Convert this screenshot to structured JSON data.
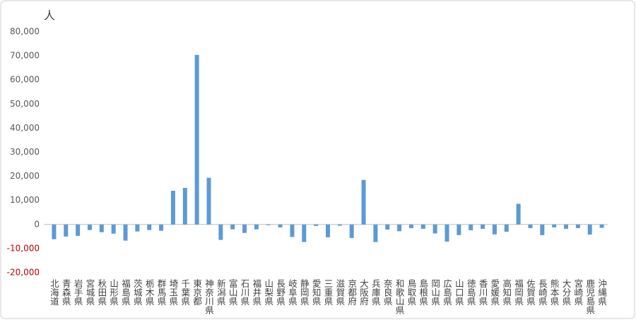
{
  "chart_data": {
    "type": "bar",
    "unit_label": "人",
    "categories": [
      "北海道",
      "青森県",
      "岩手県",
      "宮城県",
      "秋田県",
      "山形県",
      "福島県",
      "茨城県",
      "栃木県",
      "群馬県",
      "埼玉県",
      "千葉県",
      "東京都",
      "神奈川県",
      "新潟県",
      "富山県",
      "石川県",
      "福井県",
      "山梨県",
      "長野県",
      "岐阜県",
      "静岡県",
      "愛知県",
      "三重県",
      "滋賀県",
      "京都府",
      "大阪府",
      "兵庫県",
      "奈良県",
      "和歌山県",
      "鳥取県",
      "島根県",
      "岡山県",
      "広島県",
      "山口県",
      "徳島県",
      "香川県",
      "愛媛県",
      "高知県",
      "福岡県",
      "佐賀県",
      "長崎県",
      "熊本県",
      "大分県",
      "宮崎県",
      "鹿児島県",
      "沖縄県"
    ],
    "values": [
      -6100,
      -5000,
      -4700,
      -2300,
      -3200,
      -3800,
      -6700,
      -2900,
      -2300,
      -2600,
      14000,
      15200,
      70400,
      19400,
      -6400,
      -2000,
      -3500,
      -2000,
      -300,
      -1200,
      -5200,
      -7300,
      -600,
      -5300,
      -500,
      -5600,
      18500,
      -7300,
      -2100,
      -2800,
      -1500,
      -1800,
      -3700,
      -7100,
      -4400,
      -2400,
      -1800,
      -4100,
      -3000,
      8600,
      -1500,
      -4400,
      -1200,
      -1800,
      -1500,
      -4200,
      -1400
    ],
    "color": "#5b9bd5",
    "negative_tick_color": "#c00000",
    "ylim": [
      -20000,
      80000
    ],
    "yticks": [
      {
        "value": -20000,
        "label": "-20,000"
      },
      {
        "value": -10000,
        "label": "-10,000"
      },
      0,
      {
        "value": 10000,
        "label": "10,000"
      },
      {
        "value": 20000,
        "label": "20,000"
      },
      {
        "value": 30000,
        "label": "30,000"
      },
      {
        "value": 40000,
        "label": "40,000"
      },
      {
        "value": 50000,
        "label": "50,000"
      },
      {
        "value": 60000,
        "label": "60,000"
      },
      {
        "value": 70000,
        "label": "70,000"
      },
      {
        "value": 80000,
        "label": "80,000"
      }
    ],
    "grid": false
  }
}
